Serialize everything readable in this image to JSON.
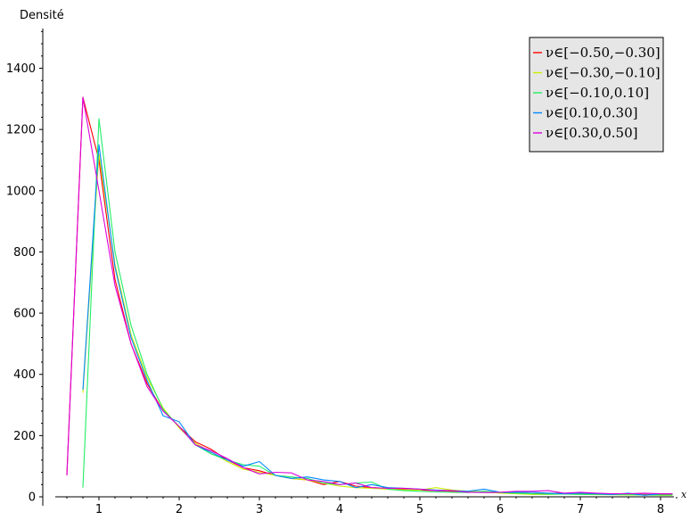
{
  "chart_data": {
    "type": "line",
    "xlabel": "x",
    "ylabel": "Densité",
    "xlim": [
      0.45,
      8.2
    ],
    "ylim": [
      0,
      1520
    ],
    "xticks": [
      "1",
      "2",
      "3",
      "4",
      "5",
      "6",
      "7",
      "8"
    ],
    "yticks": [
      "0",
      "200",
      "400",
      "600",
      "800",
      "1000",
      "1200",
      "1400"
    ],
    "grid": false,
    "legend_position": "top-right",
    "series": [
      {
        "name": "ν∈[−0.50,−0.30]",
        "color": "#ff0000",
        "x": [
          0.6,
          0.8,
          1.0,
          1.2,
          1.4,
          1.6,
          1.8,
          2.0,
          2.2,
          2.4,
          2.6,
          2.8,
          3.0,
          3.2,
          3.4,
          3.6,
          3.8,
          4.0,
          4.2,
          4.4,
          4.6,
          4.8,
          5.0,
          5.2,
          5.4,
          5.6,
          5.8,
          6.0,
          6.2,
          6.4,
          6.6,
          6.8,
          7.0,
          7.2,
          7.4,
          7.6,
          7.8,
          8.0,
          8.15
        ],
        "y": [
          70,
          1305,
          1100,
          710,
          500,
          370,
          280,
          230,
          180,
          155,
          120,
          95,
          85,
          70,
          60,
          55,
          40,
          50,
          35,
          30,
          28,
          25,
          22,
          20,
          18,
          16,
          15,
          13,
          12,
          10,
          12,
          11,
          10,
          10,
          9,
          9,
          8,
          8,
          8
        ]
      },
      {
        "name": "ν∈[−0.30,−0.10]",
        "color": "#ccee00",
        "x": [
          0.8,
          1.0,
          1.2,
          1.4,
          1.6,
          1.8,
          2.0,
          2.2,
          2.4,
          2.6,
          2.8,
          3.0,
          3.2,
          3.4,
          3.6,
          3.8,
          4.0,
          4.2,
          4.4,
          4.6,
          4.8,
          5.0,
          5.2,
          5.4,
          5.6,
          5.8,
          6.0,
          6.2,
          6.4,
          6.6,
          6.8,
          7.0,
          7.2,
          7.4,
          7.6,
          7.8,
          8.0,
          8.15
        ],
        "y": [
          340,
          1120,
          760,
          530,
          390,
          290,
          225,
          175,
          145,
          115,
          90,
          80,
          70,
          60,
          55,
          45,
          35,
          30,
          28,
          25,
          23,
          22,
          30,
          22,
          18,
          17,
          12,
          10,
          8,
          8,
          9,
          8,
          7,
          7,
          6,
          6,
          5,
          5
        ]
      },
      {
        "name": "ν∈[−0.10,0.10]",
        "color": "#22ee66",
        "x": [
          0.8,
          1.0,
          1.2,
          1.4,
          1.6,
          1.8,
          2.0,
          2.2,
          2.4,
          2.6,
          2.8,
          3.0,
          3.2,
          3.4,
          3.6,
          3.8,
          4.0,
          4.2,
          4.4,
          4.6,
          4.8,
          5.0,
          5.2,
          5.4,
          5.6,
          5.8,
          6.0,
          6.2,
          6.4,
          6.6,
          6.8,
          7.0,
          7.2,
          7.4,
          7.6,
          7.8,
          8.0,
          8.15
        ],
        "y": [
          30,
          1235,
          800,
          560,
          400,
          285,
          230,
          170,
          140,
          120,
          105,
          100,
          70,
          65,
          60,
          45,
          40,
          45,
          48,
          25,
          20,
          18,
          16,
          15,
          14,
          18,
          14,
          12,
          10,
          9,
          9,
          8,
          8,
          7,
          7,
          6,
          6,
          6
        ]
      },
      {
        "name": "ν∈[0.10,0.30]",
        "color": "#0088ff",
        "x": [
          0.8,
          1.0,
          1.2,
          1.4,
          1.6,
          1.8,
          2.0,
          2.2,
          2.4,
          2.6,
          2.8,
          3.0,
          3.2,
          3.4,
          3.6,
          3.8,
          4.0,
          4.2,
          4.4,
          4.6,
          4.8,
          5.0,
          5.2,
          5.4,
          5.6,
          5.8,
          6.0,
          6.2,
          6.4,
          6.6,
          6.8,
          7.0,
          7.2,
          7.4,
          7.6,
          7.8,
          8.0,
          8.15
        ],
        "y": [
          350,
          1150,
          750,
          520,
          380,
          265,
          245,
          170,
          145,
          120,
          100,
          115,
          70,
          60,
          65,
          55,
          50,
          30,
          40,
          30,
          28,
          25,
          22,
          20,
          18,
          25,
          15,
          15,
          15,
          12,
          10,
          12,
          10,
          8,
          12,
          5,
          10,
          10
        ]
      },
      {
        "name": "ν∈[0.30,0.50]",
        "color": "#dd00dd",
        "x": [
          0.6,
          0.8,
          1.0,
          1.2,
          1.4,
          1.6,
          1.8,
          2.0,
          2.2,
          2.4,
          2.6,
          2.8,
          3.0,
          3.2,
          3.4,
          3.6,
          3.8,
          4.0,
          4.2,
          4.4,
          4.6,
          4.8,
          5.0,
          5.2,
          5.4,
          5.6,
          5.8,
          6.0,
          6.2,
          6.4,
          6.6,
          6.8,
          7.0,
          7.2,
          7.4,
          7.6,
          7.8,
          8.0,
          8.15
        ],
        "y": [
          70,
          1305,
          1000,
          690,
          500,
          360,
          280,
          230,
          170,
          150,
          125,
          95,
          75,
          80,
          78,
          55,
          50,
          40,
          45,
          30,
          28,
          28,
          25,
          20,
          20,
          15,
          14,
          15,
          18,
          18,
          20,
          12,
          15,
          12,
          10,
          10,
          12,
          10,
          10
        ]
      }
    ]
  }
}
